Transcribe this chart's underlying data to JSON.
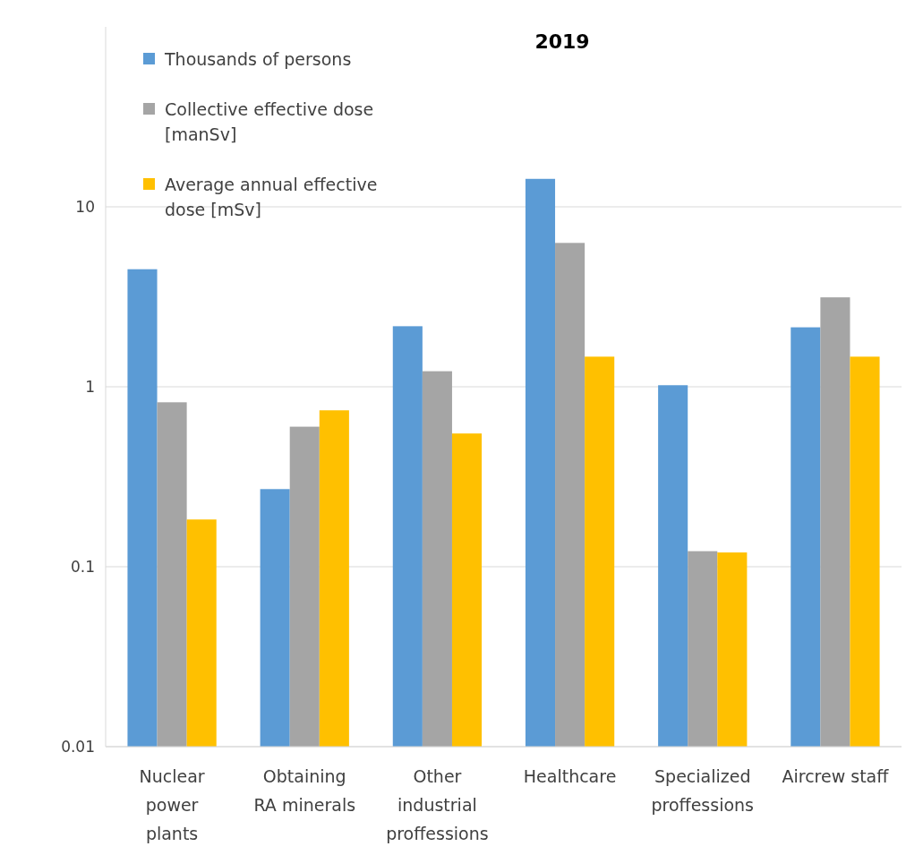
{
  "chart_data": {
    "type": "bar",
    "title": "2019",
    "categories": [
      "Nuclear power plants",
      "Obtaining RA minerals",
      "Other industrial proffessions",
      "Healthcare",
      "Specialized proffessions",
      "Aircrew staff"
    ],
    "series": [
      {
        "name": "Thousands of persons",
        "color": "#5b9bd5",
        "values": [
          4.5,
          0.27,
          2.17,
          14.3,
          1.02,
          2.14
        ]
      },
      {
        "name": "Collective effective dose [manSv]",
        "color": "#a5a5a5",
        "values": [
          0.82,
          0.6,
          1.22,
          6.3,
          0.122,
          3.14
        ]
      },
      {
        "name": "Average annual effective dose [mSv]",
        "color": "#ffc000",
        "values": [
          0.183,
          0.74,
          0.55,
          1.47,
          0.12,
          1.47
        ]
      }
    ],
    "log": true,
    "ylim": [
      0.01,
      100
    ],
    "yticks": [
      0.01,
      0.1,
      1,
      10
    ],
    "grid": "y",
    "legend": "top left"
  }
}
